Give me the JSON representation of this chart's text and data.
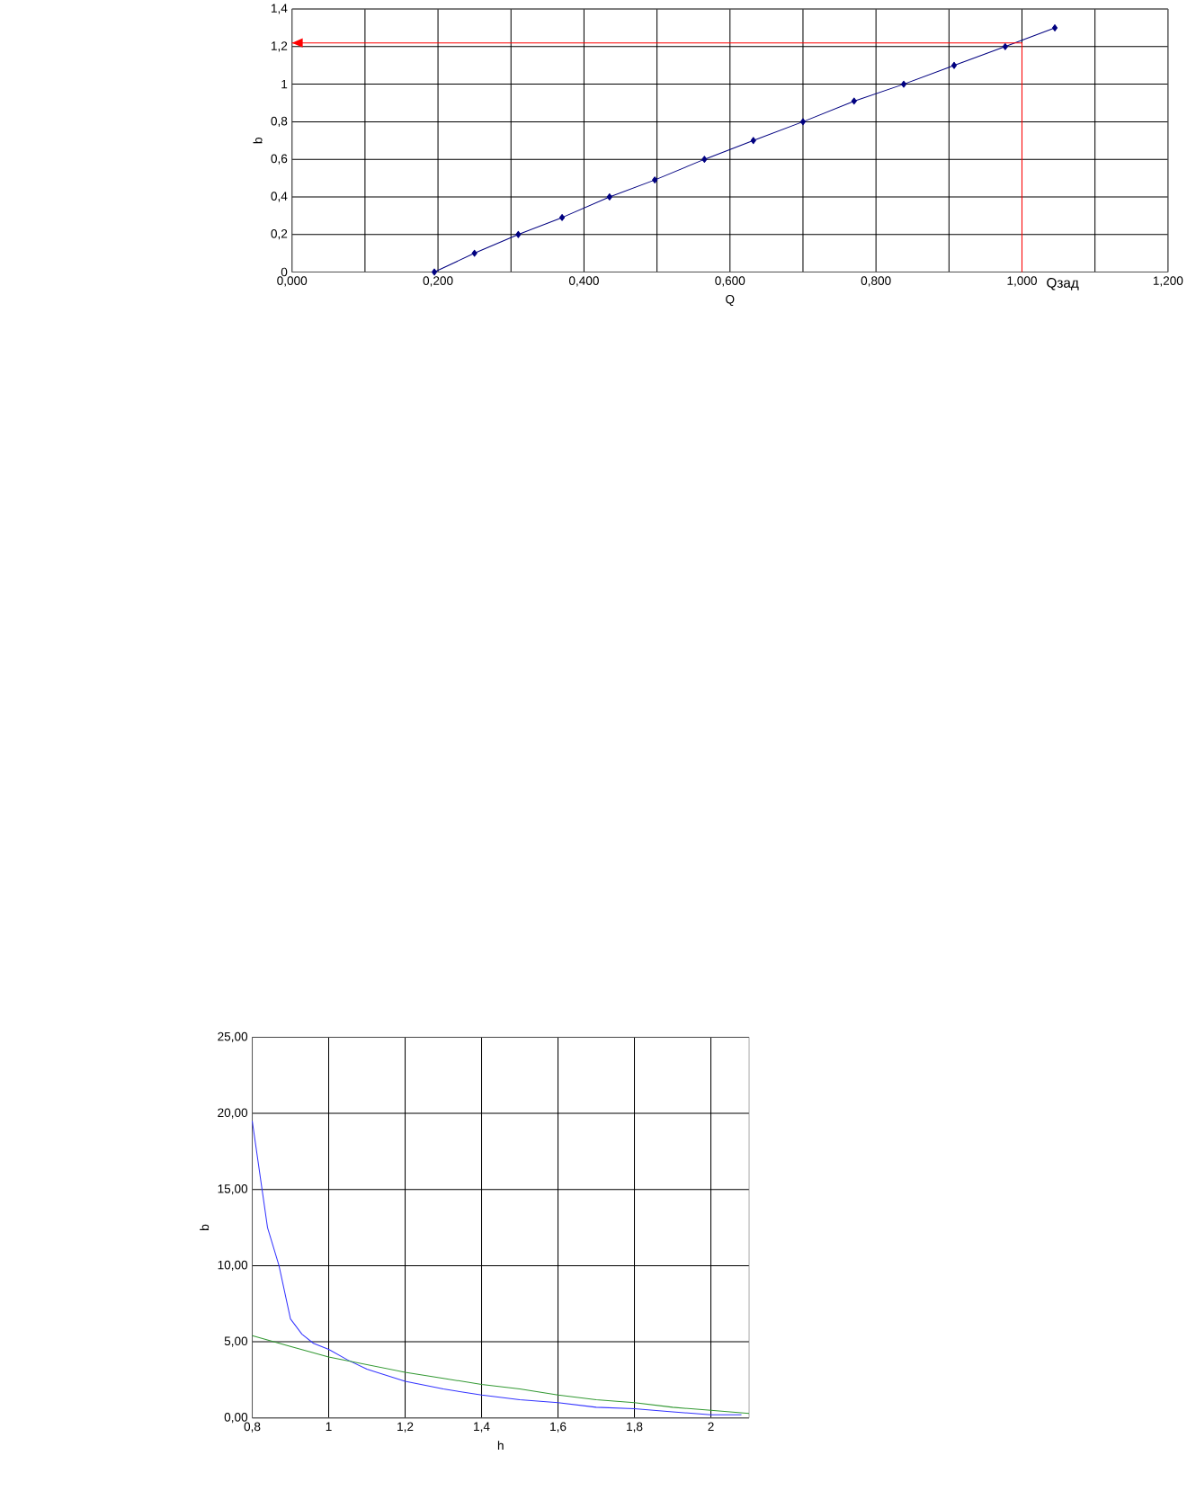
{
  "chart_data": [
    {
      "type": "line",
      "xlabel": "Q",
      "ylabel": "b",
      "xlim": [
        0,
        1.2
      ],
      "ylim": [
        0,
        1.4
      ],
      "grid": true,
      "marker": "diamond",
      "xticks": [
        {
          "value": 0,
          "label": "0,000"
        },
        {
          "value": 0.1,
          "label": null
        },
        {
          "value": 0.2,
          "label": "0,200"
        },
        {
          "value": 0.3,
          "label": null
        },
        {
          "value": 0.4,
          "label": "0,400"
        },
        {
          "value": 0.5,
          "label": null
        },
        {
          "value": 0.6,
          "label": "0,600"
        },
        {
          "value": 0.7,
          "label": null
        },
        {
          "value": 0.8,
          "label": "0,800"
        },
        {
          "value": 0.9,
          "label": null
        },
        {
          "value": 1.0,
          "label": "1,000"
        },
        {
          "value": 1.1,
          "label": null
        },
        {
          "value": 1.2,
          "label": "1,200"
        }
      ],
      "yticks": [
        0,
        {
          "value": 0.2,
          "label": "0,2"
        },
        {
          "value": 0.4,
          "label": "0,4"
        },
        {
          "value": 0.6,
          "label": "0,6"
        },
        {
          "value": 0.8,
          "label": "0,8"
        },
        1,
        {
          "value": 1.2,
          "label": "1,2"
        },
        {
          "value": 1.4,
          "label": "1,4"
        }
      ],
      "series": [
        {
          "color": "#000080",
          "x": [
            0.195,
            0.25,
            0.31,
            0.37,
            0.435,
            0.497,
            0.565,
            0.632,
            0.7,
            0.77,
            0.838,
            0.907,
            0.977,
            1.045
          ],
          "values": [
            0,
            0.1,
            0.2,
            0.29,
            0.4,
            0.49,
            0.6,
            0.7,
            0.8,
            0.91,
            1.0,
            1.1,
            1.2,
            1.3
          ]
        },
        {
          "color": "#ff0000",
          "marker": "none",
          "x": [
            1.0,
            1.0,
            0.0
          ],
          "values": [
            0,
            1.22,
            1.22
          ]
        }
      ],
      "annotations": [
        {
          "text": "Qзад",
          "x": 1.0,
          "y": 0
        }
      ]
    },
    {
      "type": "line",
      "xlabel": "h",
      "ylabel": "b",
      "xlim": [
        0.8,
        2.1
      ],
      "ylim": [
        0,
        25
      ],
      "grid": true,
      "marker": "none",
      "xticks": [
        {
          "value": 0.8,
          "label": "0,8"
        },
        1,
        {
          "value": 1.2,
          "label": "1,2"
        },
        {
          "value": 1.4,
          "label": "1,4"
        },
        {
          "value": 1.6,
          "label": "1,6"
        },
        {
          "value": 1.8,
          "label": "1,8"
        },
        2
      ],
      "yticks": [
        {
          "value": 0,
          "label": "0,00"
        },
        {
          "value": 5,
          "label": "5,00"
        },
        {
          "value": 10,
          "label": "10,00"
        },
        {
          "value": 15,
          "label": "15,00"
        },
        {
          "value": 20,
          "label": "20,00"
        },
        {
          "value": 25,
          "label": "25,00"
        }
      ],
      "series": [
        {
          "color": "#3333ff",
          "x": [
            0.8,
            0.82,
            0.84,
            0.87,
            0.9,
            0.93,
            0.96,
            1.0,
            1.05,
            1.1,
            1.2,
            1.3,
            1.4,
            1.5,
            1.6,
            1.7,
            1.8,
            1.9,
            2.0,
            2.08
          ],
          "values": [
            19.5,
            16,
            12.5,
            10,
            6.5,
            5.5,
            4.9,
            4.5,
            3.8,
            3.2,
            2.4,
            1.9,
            1.5,
            1.2,
            1.0,
            0.7,
            0.6,
            0.4,
            0.2,
            0.2
          ]
        },
        {
          "color": "#339933",
          "x": [
            0.8,
            0.9,
            1.0,
            1.1,
            1.2,
            1.3,
            1.4,
            1.5,
            1.6,
            1.7,
            1.8,
            1.9,
            2.0,
            2.1
          ],
          "values": [
            5.4,
            4.7,
            4.0,
            3.5,
            3.0,
            2.6,
            2.2,
            1.9,
            1.5,
            1.2,
            1.0,
            0.7,
            0.5,
            0.3
          ]
        }
      ]
    }
  ]
}
